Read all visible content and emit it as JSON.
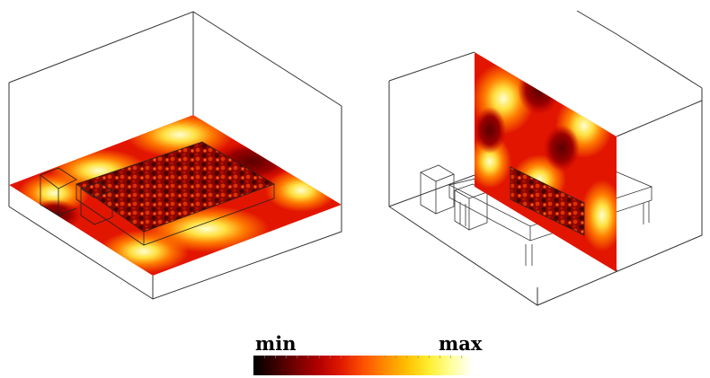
{
  "colorbar": {
    "min_label": "min",
    "max_label": "max",
    "colors": [
      "#000000",
      "#3a0000",
      "#7a0000",
      "#b40000",
      "#e01a00",
      "#ff5000",
      "#ff8a00",
      "#ffc000",
      "#ffee30",
      "#ffff9a",
      "#ffffff"
    ]
  }
}
